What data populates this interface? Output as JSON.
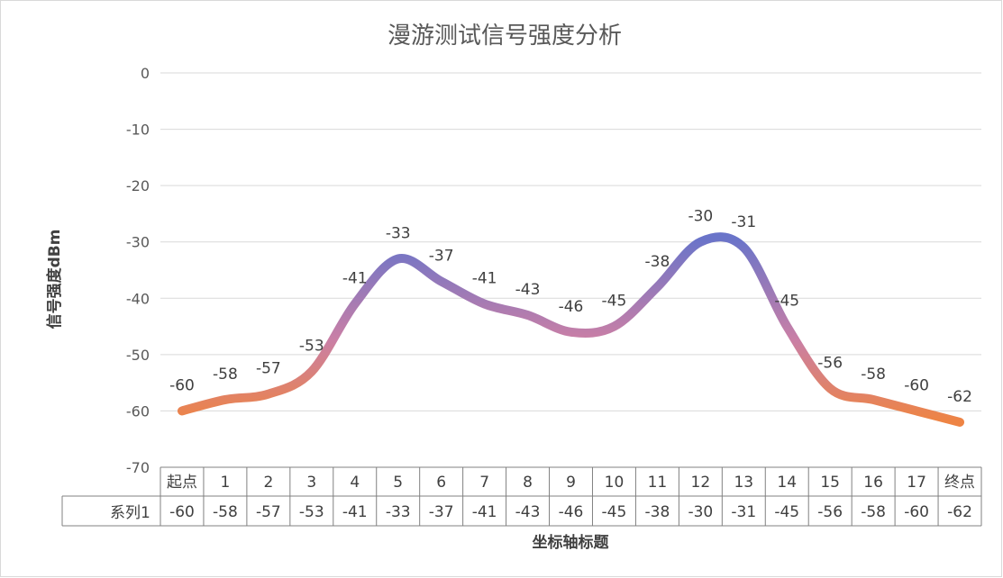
{
  "chart_data": {
    "type": "line",
    "title": "漫游测试信号强度分析",
    "ylabel": "信号强度dBm",
    "xlabel": "坐标轴标题",
    "ylim": [
      -70,
      0
    ],
    "yticks": [
      0,
      -10,
      -20,
      -30,
      -40,
      -50,
      -60,
      -70
    ],
    "categories": [
      "起点",
      "1",
      "2",
      "3",
      "4",
      "5",
      "6",
      "7",
      "8",
      "9",
      "10",
      "11",
      "12",
      "13",
      "14",
      "15",
      "16",
      "17",
      "终点"
    ],
    "series": [
      {
        "name": "系列1",
        "values": [
          -60,
          -58,
          -57,
          -53,
          -41,
          -33,
          -37,
          -41,
          -43,
          -46,
          -45,
          -38,
          -30,
          -31,
          -45,
          -56,
          -58,
          -60,
          -62
        ]
      }
    ],
    "smooth": true,
    "data_labels": true,
    "data_table": true,
    "gridlines": true,
    "gradient_colors": {
      "high": "#6a74c9",
      "low": "#ee8444"
    }
  }
}
